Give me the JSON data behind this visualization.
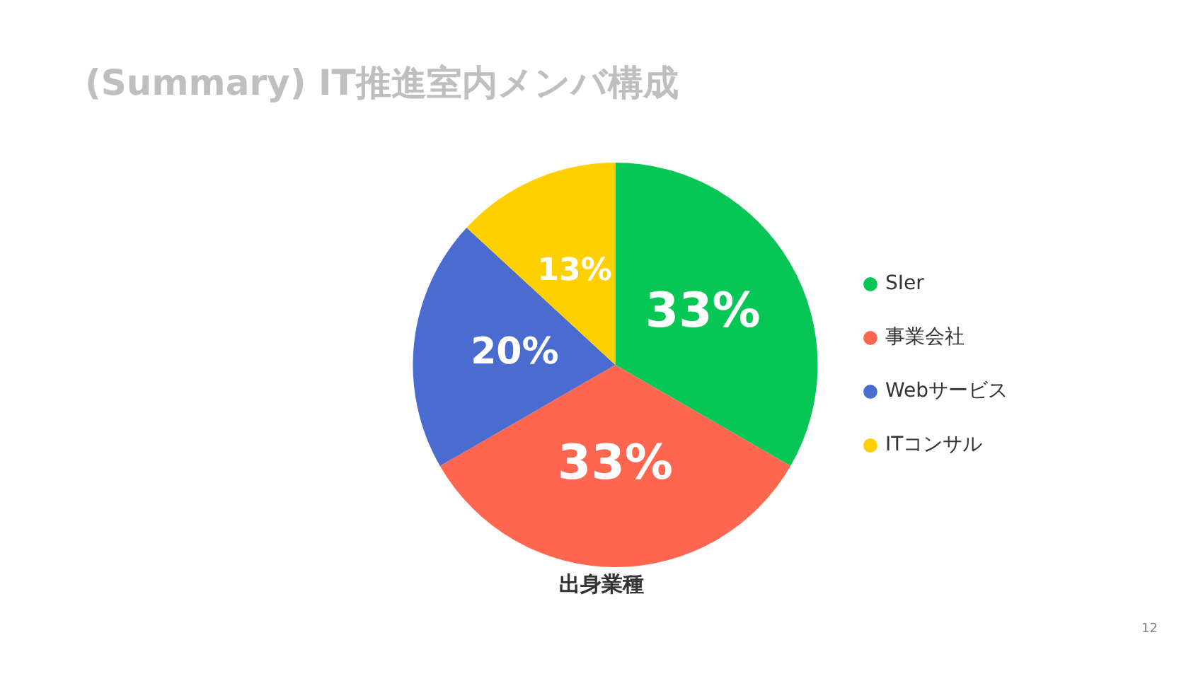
{
  "chart_data": {
    "type": "pie",
    "title": "(Summary) IT推進室内メンバ構成",
    "xlabel": "出身業種",
    "categories": [
      "SIer",
      "事業会社",
      "Webサービス",
      "ITコンサル"
    ],
    "values": [
      33,
      33,
      20,
      13
    ],
    "colors": [
      "#06c755",
      "#ff6650",
      "#4a6bcf",
      "#ffd000"
    ],
    "value_labels": [
      "33%",
      "33%",
      "20%",
      "13%"
    ],
    "legend": "right",
    "annotations": [
      "12"
    ]
  }
}
